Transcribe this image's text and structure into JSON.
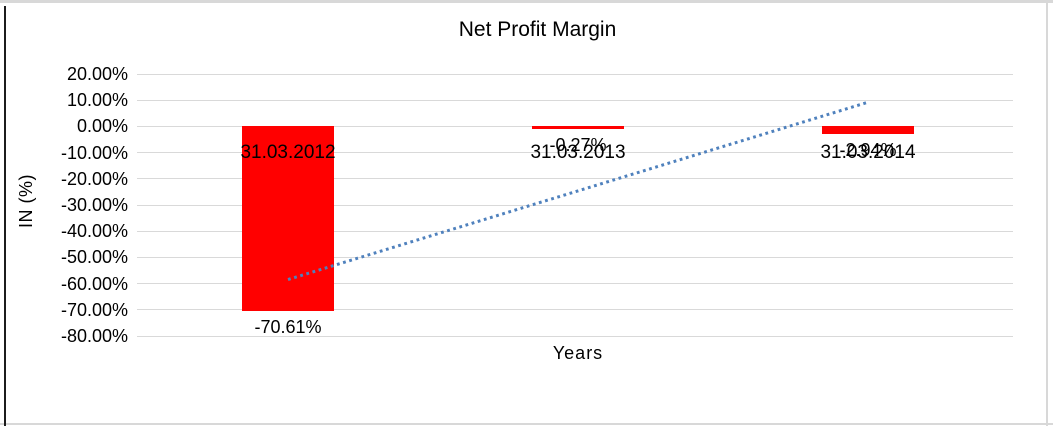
{
  "chart_data": {
    "type": "bar",
    "title": "Net Profit Margin",
    "xlabel": "Years",
    "ylabel": "IN (%)",
    "categories": [
      "31.03.2012",
      "31.03.2013",
      "31.03.2014"
    ],
    "values": [
      -70.61,
      -0.27,
      -2.94
    ],
    "data_labels": [
      "-70.61%",
      "-0.27%",
      "-2.94%"
    ],
    "yticks": [
      {
        "value": 20,
        "label": "20.00%"
      },
      {
        "value": 10,
        "label": "10.00%"
      },
      {
        "value": 0,
        "label": "0.00%"
      },
      {
        "value": -10,
        "label": "-10.00%"
      },
      {
        "value": -20,
        "label": "-20.00%"
      },
      {
        "value": -30,
        "label": "-30.00%"
      },
      {
        "value": -40,
        "label": "-40.00%"
      },
      {
        "value": -50,
        "label": "-50.00%"
      },
      {
        "value": -60,
        "label": "-60.00%"
      },
      {
        "value": -70,
        "label": "-70.00%"
      },
      {
        "value": -80,
        "label": "-80.00%"
      }
    ],
    "ylim": [
      -80,
      20
    ],
    "grid": true,
    "legend": null,
    "bar_color": "#ff0000",
    "gridline_color": "#d9d9d9",
    "trendline": {
      "type": "linear",
      "style": "dotted",
      "color": "#4f81bd"
    }
  }
}
